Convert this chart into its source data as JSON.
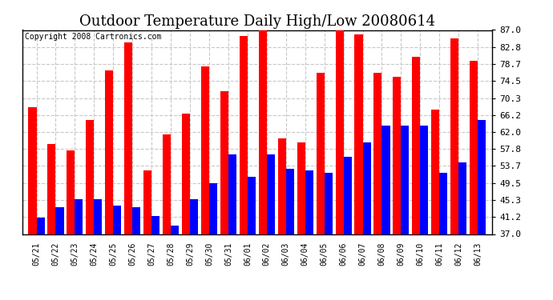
{
  "title": "Outdoor Temperature Daily High/Low 20080614",
  "copyright": "Copyright 2008 Cartronics.com",
  "categories": [
    "05/21",
    "05/22",
    "05/23",
    "05/24",
    "05/25",
    "05/26",
    "05/27",
    "05/28",
    "05/29",
    "05/30",
    "05/31",
    "06/01",
    "06/02",
    "06/03",
    "06/04",
    "06/05",
    "06/06",
    "06/07",
    "06/08",
    "06/09",
    "06/10",
    "06/11",
    "06/12",
    "06/13"
  ],
  "highs": [
    68.0,
    59.0,
    57.5,
    65.0,
    77.0,
    84.0,
    52.5,
    61.5,
    66.5,
    78.0,
    72.0,
    85.5,
    87.0,
    60.5,
    59.5,
    76.5,
    87.5,
    86.0,
    76.5,
    75.5,
    80.5,
    67.5,
    85.0,
    79.5
  ],
  "lows": [
    41.0,
    43.5,
    45.5,
    45.5,
    44.0,
    43.5,
    41.5,
    39.0,
    45.5,
    49.5,
    56.5,
    51.0,
    56.5,
    53.0,
    52.5,
    52.0,
    56.0,
    59.5,
    63.5,
    63.5,
    63.5,
    52.0,
    54.5,
    65.0
  ],
  "high_color": "#ff0000",
  "low_color": "#0000ff",
  "bg_color": "#ffffff",
  "grid_color": "#c8c8c8",
  "yticks": [
    37.0,
    41.2,
    45.3,
    49.5,
    53.7,
    57.8,
    62.0,
    66.2,
    70.3,
    74.5,
    78.7,
    82.8,
    87.0
  ],
  "ymin": 37.0,
  "ymax": 87.0,
  "title_fontsize": 13,
  "copyright_fontsize": 7,
  "bar_width": 0.42
}
